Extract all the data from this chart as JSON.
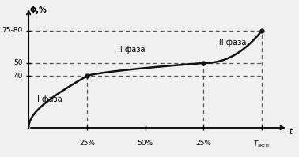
{
  "ylabel": "Φ,%",
  "xlabel": "t",
  "yticks": [
    40,
    50,
    75
  ],
  "ytick_labels": [
    "40",
    "50",
    "75-80"
  ],
  "xtick_positions": [
    0.25,
    0.5,
    0.75,
    1.0
  ],
  "xtick_labels": [
    "25%",
    "50%",
    "25%",
    "Tэксп."
  ],
  "phase1_label": "I фаза",
  "phase2_label": "II фаза",
  "phase3_label": "III фаза",
  "key_points": [
    [
      0.0,
      0.0
    ],
    [
      0.25,
      40.0
    ],
    [
      0.75,
      50.0
    ],
    [
      1.0,
      75.0
    ]
  ],
  "dashed_color": "#555555",
  "curve_color": "#111111",
  "bg_color": "#f0f0f0",
  "xlim": [
    -0.02,
    1.12
  ],
  "ylim": [
    -8,
    95
  ]
}
